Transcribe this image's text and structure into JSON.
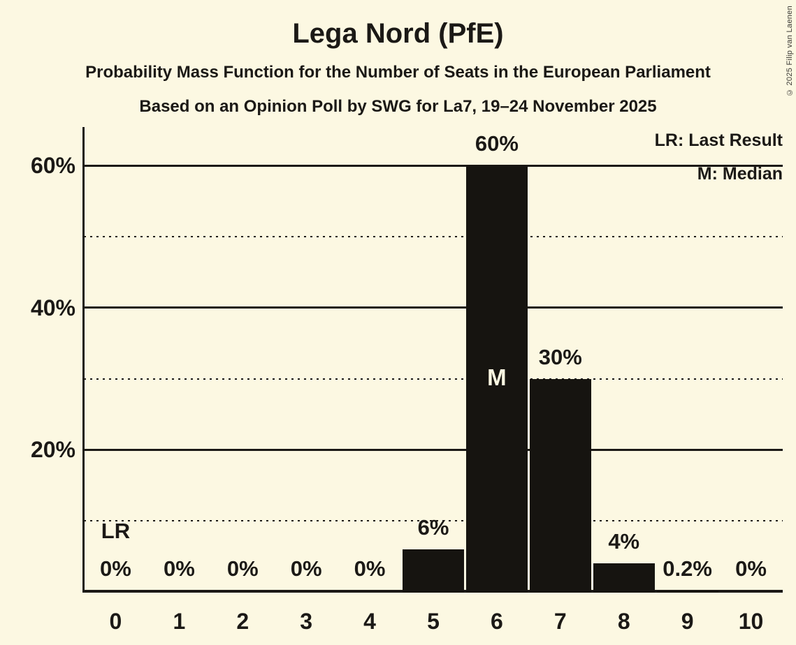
{
  "copyright": "© 2025 Filip van Laenen",
  "colors": {
    "background": "#FCF8E2",
    "ink": "#1B1916",
    "bar": "#161410",
    "median_label": "#FCF8E2"
  },
  "chart_data": {
    "type": "bar",
    "title": "Lega Nord (PfE)",
    "subtitle": "Probability Mass Function for the Number of Seats in the European Parliament",
    "poll_details": "Based on an Opinion Poll by SWG for La7, 19–24 November 2025",
    "categories": [
      "0",
      "1",
      "2",
      "3",
      "4",
      "5",
      "6",
      "7",
      "8",
      "9",
      "10"
    ],
    "values": [
      0,
      0,
      0,
      0,
      0,
      6,
      60,
      30,
      4,
      0.2,
      0
    ],
    "bar_labels": [
      "0%",
      "0%",
      "0%",
      "0%",
      "0%",
      "6%",
      "60%",
      "30%",
      "4%",
      "0.2%",
      "0%"
    ],
    "ylim": [
      0,
      65
    ],
    "ytick_pcts": [
      20,
      40,
      60
    ],
    "ytick_labels": [
      "20%",
      "40%",
      "60%"
    ],
    "solid_gridlines_pct": [
      20,
      40,
      60
    ],
    "dotted_gridlines_pct": [
      10,
      30,
      50
    ],
    "grid": true,
    "legend_position": "top-right",
    "legend": {
      "lr_label": "LR: Last Result",
      "m_label": "M: Median"
    },
    "median_seat": 6,
    "median_marker": "M",
    "last_result_seat": 0,
    "last_result_marker": "LR"
  }
}
